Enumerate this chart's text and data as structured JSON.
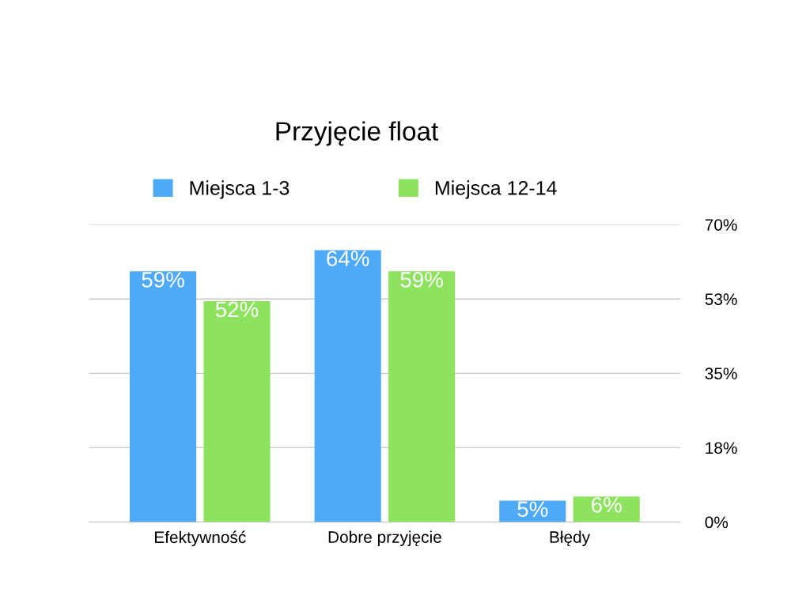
{
  "chart_data": {
    "type": "bar",
    "title": "Przyjęcie float",
    "categories": [
      "Efektywność",
      "Dobre przyjęcie",
      "Błędy"
    ],
    "series": [
      {
        "name": "Miejsca 1-3",
        "color": "#4eaaf6",
        "values": [
          59,
          64,
          5
        ],
        "value_labels": [
          "59%",
          "64%",
          "5%"
        ]
      },
      {
        "name": "Miejsca 12-14",
        "color": "#8ee35e",
        "values": [
          52,
          59,
          6
        ],
        "value_labels": [
          "52%",
          "59%",
          "6%"
        ]
      }
    ],
    "ylim": [
      0,
      70
    ],
    "yticks": [
      {
        "value": 0,
        "label": "0%"
      },
      {
        "value": 17.5,
        "label": "18%"
      },
      {
        "value": 35,
        "label": "35%"
      },
      {
        "value": 52.5,
        "label": "53%"
      },
      {
        "value": 70,
        "label": "70%"
      }
    ],
    "grid": "y",
    "legend": "top"
  }
}
